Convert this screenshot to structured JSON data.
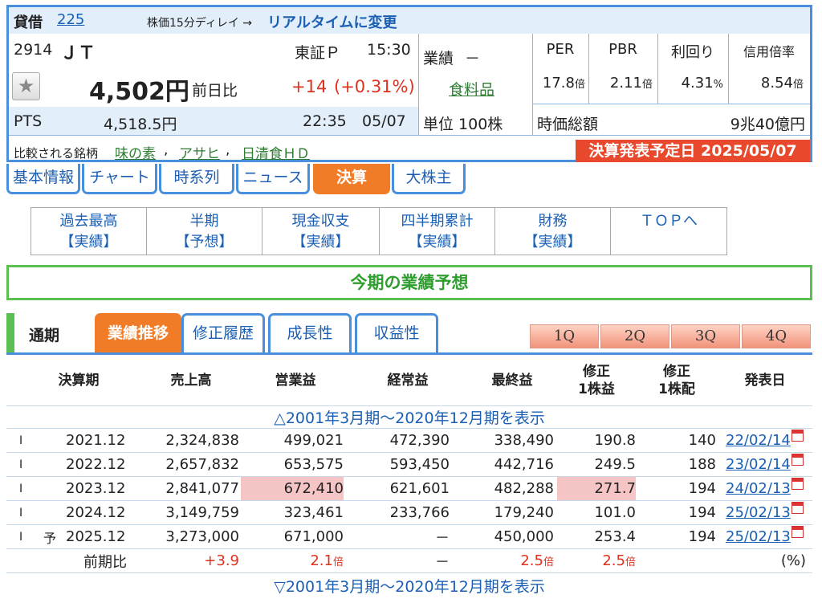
{
  "header": {
    "lending": "貸借",
    "lending_num": "225",
    "delay_note": "株価15分ディレイ →",
    "realtime_link": "リアルタイムに変更",
    "code": "2914",
    "name": "ＪＴ",
    "market": "東証Ｐ",
    "time": "15:30",
    "price": "4,502円",
    "change_label": "前日比",
    "change": "+14",
    "change_pct": "(+0.31%)",
    "pts_label": "PTS",
    "pts_price": "4,518.5円",
    "pts_time": "22:35",
    "pts_date": "05/07",
    "results_label": "業績",
    "results_value": "－",
    "sector": "食料品",
    "unit": "単位 100株",
    "metrics": [
      {
        "label": "PER",
        "value": "17.8",
        "unit": "倍"
      },
      {
        "label": "PBR",
        "value": "2.11",
        "unit": "倍"
      },
      {
        "label": "利回り",
        "value": "4.31",
        "unit": "%"
      },
      {
        "label": "信用倍率",
        "value": "8.54",
        "unit": "倍"
      }
    ],
    "market_cap_label": "時価総額",
    "market_cap": "9兆40億円",
    "compare_label": "比較される銘柄",
    "compare": [
      "味の素",
      "アサヒ",
      "日清食ＨＤ"
    ],
    "decision_label": "決算発表予定日",
    "decision_date": "2025/05/07"
  },
  "tabs": [
    {
      "label": "基本情報"
    },
    {
      "label": "チャート"
    },
    {
      "label": "時系列"
    },
    {
      "label": "ニュース"
    },
    {
      "label": "決算"
    },
    {
      "label": "大株主"
    }
  ],
  "subnav": [
    {
      "line1": "過去最高",
      "line2": "【実績】"
    },
    {
      "line1": "半期",
      "line2": "【予想】"
    },
    {
      "line1": "現金収支",
      "line2": "【実績】"
    },
    {
      "line1": "四半期累計",
      "line2": "【実績】"
    },
    {
      "line1": "財務",
      "line2": "【実績】"
    },
    {
      "line1": "ＴＯＰへ",
      "line2": ""
    }
  ],
  "section_title": "今期の業績予想",
  "period": {
    "label": "通期",
    "tabs": [
      {
        "label": "業績推移"
      },
      {
        "label": "修正履歴"
      },
      {
        "label": "成長性"
      },
      {
        "label": "収益性"
      }
    ],
    "quarters": [
      "1Q",
      "2Q",
      "3Q",
      "4Q"
    ]
  },
  "table": {
    "headers": {
      "period": "決算期",
      "sales": "売上高",
      "op": "営業益",
      "ordinary": "経常益",
      "net": "最終益",
      "eps1": "修正",
      "eps2": "1株益",
      "div1": "修正",
      "div2": "1株配",
      "date": "発表日"
    },
    "toggle_top": "△2001年3月期～2020年12月期を表示",
    "rows": [
      {
        "mark": "I",
        "forecast": "",
        "period": "2021.12",
        "sales": "2,324,838",
        "op": "499,021",
        "ordinary": "472,390",
        "net": "338,490",
        "eps": "190.8",
        "div": "140",
        "date": "22/02/14"
      },
      {
        "mark": "I",
        "forecast": "",
        "period": "2022.12",
        "sales": "2,657,832",
        "op": "653,575",
        "ordinary": "593,450",
        "net": "442,716",
        "eps": "249.5",
        "div": "188",
        "date": "23/02/14"
      },
      {
        "mark": "I",
        "forecast": "",
        "period": "2023.12",
        "sales": "2,841,077",
        "op": "672,410",
        "ordinary": "621,601",
        "net": "482,288",
        "eps": "271.7",
        "div": "194",
        "date": "24/02/13"
      },
      {
        "mark": "I",
        "forecast": "",
        "period": "2024.12",
        "sales": "3,149,759",
        "op": "323,461",
        "ordinary": "233,766",
        "net": "179,240",
        "eps": "101.0",
        "div": "194",
        "date": "25/02/13"
      },
      {
        "mark": "I",
        "forecast": "予",
        "period": "2025.12",
        "sales": "3,273,000",
        "op": "671,000",
        "ordinary": "－",
        "net": "450,000",
        "eps": "253.4",
        "div": "194",
        "date": "25/02/13"
      }
    ],
    "yoy": {
      "label": "前期比",
      "sales": "+3.9",
      "op": "2.1",
      "op_unit": "倍",
      "ordinary": "－",
      "net": "2.5",
      "net_unit": "倍",
      "eps": "2.5",
      "eps_unit": "倍",
      "unit_note": "(%)"
    },
    "toggle_bottom": "▽2001年3月期～2020年12月期を表示"
  },
  "colors": {
    "accent_blue": "#4a8fdc",
    "active_orange": "#f07c28",
    "positive_red": "#e0301e",
    "highlight_pink": "#f5c4c4",
    "section_green": "#5cbf52"
  }
}
